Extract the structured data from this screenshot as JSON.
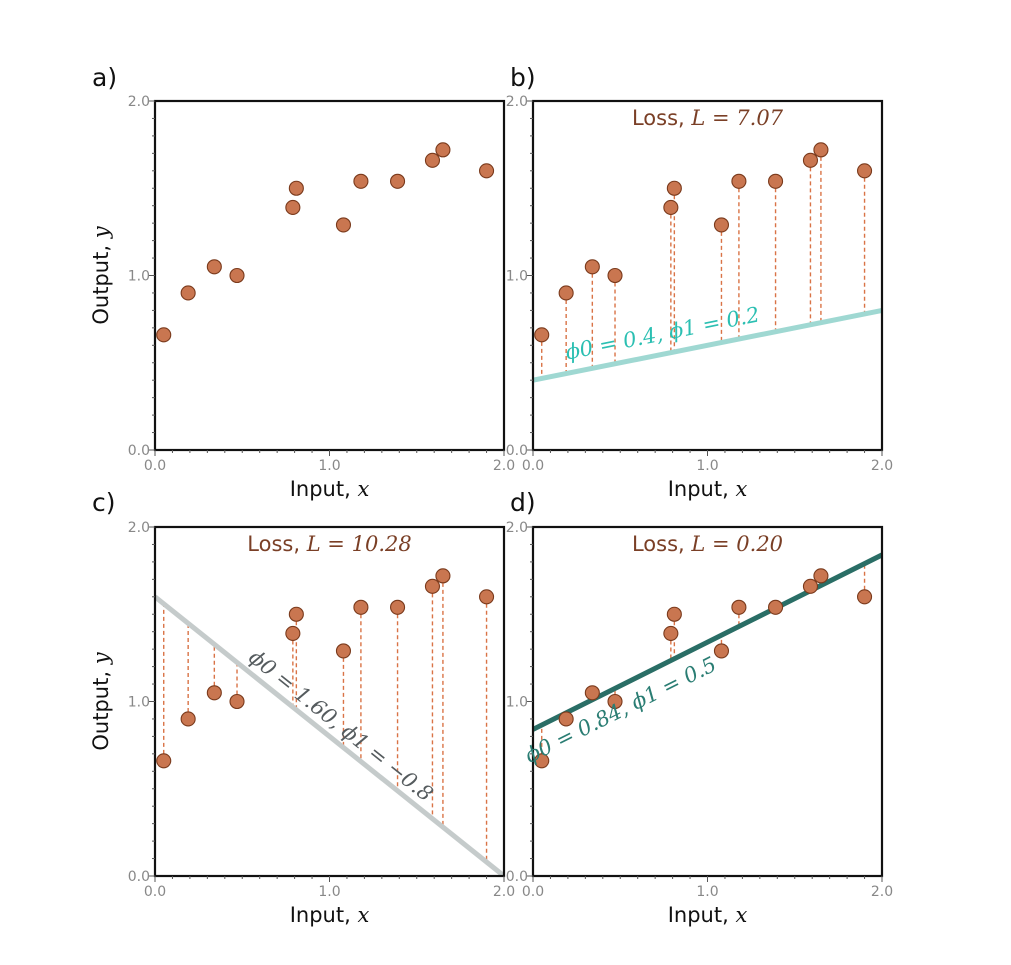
{
  "figure": {
    "x_label": "Input, ",
    "x_var": "x",
    "y_label": "Output, ",
    "y_var": "y",
    "loss_prefix": "Loss, ",
    "loss_var": "L = "
  },
  "colors": {
    "points": "#c97650",
    "point_edge": "#7a3a1c",
    "residual": "#d97346",
    "loss_text": "#7a3f26"
  },
  "chart_data": [
    {
      "panel": "a)",
      "type": "scatter",
      "x": [
        0.05,
        0.19,
        0.34,
        0.47,
        0.79,
        0.81,
        1.08,
        1.18,
        1.39,
        1.59,
        1.65,
        1.9
      ],
      "y": [
        0.66,
        0.9,
        1.05,
        1.0,
        1.39,
        1.5,
        1.29,
        1.54,
        1.54,
        1.66,
        1.72,
        1.6
      ],
      "xlim": [
        0.0,
        2.0
      ],
      "ylim": [
        0.0,
        2.0
      ],
      "xticks": [
        "0.0",
        "1.0",
        "2.0"
      ],
      "yticks": [
        "0.0",
        "1.0",
        "2.0"
      ],
      "grid": false
    },
    {
      "panel": "b)",
      "type": "scatter",
      "loss": "7.07",
      "line": {
        "phi0": 0.4,
        "phi1": 0.2,
        "label": "ϕ0 = 0.4, ϕ1 = 0.2",
        "color": "#9fd8d2",
        "label_color": "#2bbfb2"
      },
      "x": [
        0.05,
        0.19,
        0.34,
        0.47,
        0.79,
        0.81,
        1.08,
        1.18,
        1.39,
        1.59,
        1.65,
        1.9
      ],
      "y": [
        0.66,
        0.9,
        1.05,
        1.0,
        1.39,
        1.5,
        1.29,
        1.54,
        1.54,
        1.66,
        1.72,
        1.6
      ],
      "xlim": [
        0.0,
        2.0
      ],
      "ylim": [
        0.0,
        2.0
      ],
      "xticks": [
        "0.0",
        "1.0",
        "2.0"
      ],
      "yticks": [
        "0.0",
        "1.0",
        "2.0"
      ],
      "grid": false
    },
    {
      "panel": "c)",
      "type": "scatter",
      "loss": "10.28",
      "line": {
        "phi0": 1.6,
        "phi1": -0.8,
        "label": "ϕ0 = 1.60, ϕ1 = −0.8",
        "color": "#c5cbcb",
        "label_color": "#555b5e"
      },
      "x": [
        0.05,
        0.19,
        0.34,
        0.47,
        0.79,
        0.81,
        1.08,
        1.18,
        1.39,
        1.59,
        1.65,
        1.9
      ],
      "y": [
        0.66,
        0.9,
        1.05,
        1.0,
        1.39,
        1.5,
        1.29,
        1.54,
        1.54,
        1.66,
        1.72,
        1.6
      ],
      "xlim": [
        0.0,
        2.0
      ],
      "ylim": [
        0.0,
        2.0
      ],
      "xticks": [
        "0.0",
        "1.0",
        "2.0"
      ],
      "yticks": [
        "0.0",
        "1.0",
        "2.0"
      ],
      "grid": false
    },
    {
      "panel": "d)",
      "type": "scatter",
      "loss": "0.20",
      "line": {
        "phi0": 0.84,
        "phi1": 0.5,
        "label": "ϕ0 = 0.84, ϕ1 = 0.5",
        "color": "#2a6e66",
        "label_color": "#2a7d73"
      },
      "x": [
        0.05,
        0.19,
        0.34,
        0.47,
        0.79,
        0.81,
        1.08,
        1.18,
        1.39,
        1.59,
        1.65,
        1.9
      ],
      "y": [
        0.66,
        0.9,
        1.05,
        1.0,
        1.39,
        1.5,
        1.29,
        1.54,
        1.54,
        1.66,
        1.72,
        1.6
      ],
      "xlim": [
        0.0,
        2.0
      ],
      "ylim": [
        0.0,
        2.0
      ],
      "xticks": [
        "0.0",
        "1.0",
        "2.0"
      ],
      "yticks": [
        "0.0",
        "1.0",
        "2.0"
      ],
      "grid": false
    }
  ]
}
